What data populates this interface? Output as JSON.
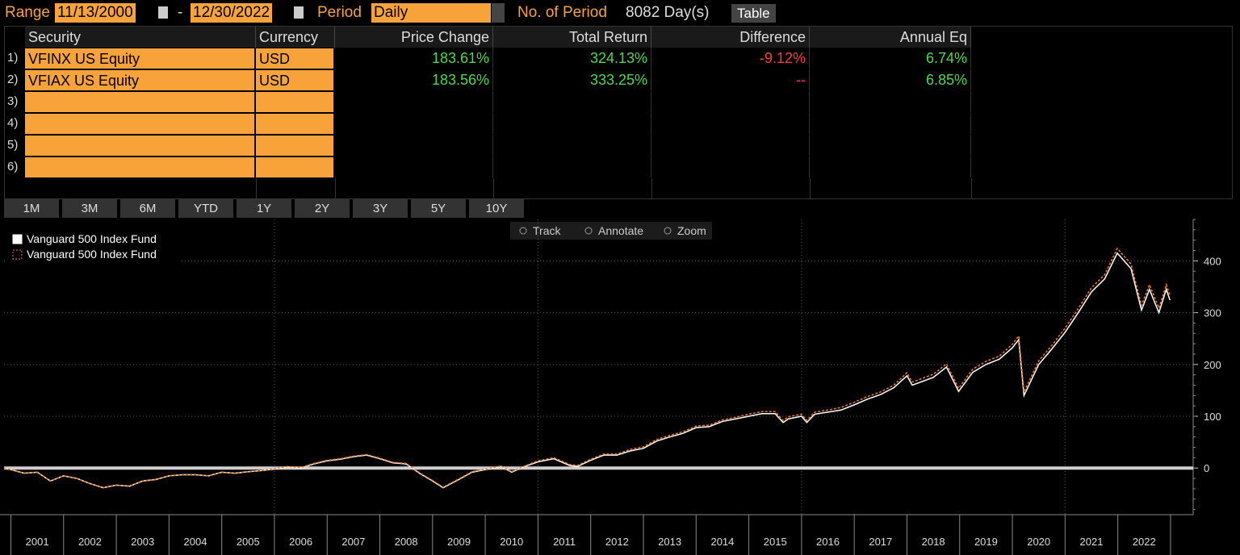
{
  "toolbar": {
    "range_label": "Range",
    "start_date": "11/13/2000",
    "dash": "-",
    "end_date": "12/30/2022",
    "period_label": "Period",
    "period": "Daily",
    "periods_label": "No. of Period",
    "periods_value": "8082 Day(s)",
    "table_button": "Table"
  },
  "table": {
    "headers": [
      "Security",
      "Currency",
      "Price Change",
      "Total Return",
      "Difference",
      "Annual Eq"
    ],
    "row_numbers": [
      "1)",
      "2)",
      "3)",
      "4)",
      "5)",
      "6)"
    ],
    "rows": [
      [
        "VFINX US Equity",
        "USD",
        "183.61%",
        "324.13%",
        "-9.12%",
        "6.74%"
      ],
      [
        "VFIAX US Equity",
        "USD",
        "183.56%",
        "333.25%",
        "--",
        "6.85%"
      ],
      [],
      [],
      [],
      []
    ]
  },
  "range_buttons": [
    "1M",
    "3M",
    "6M",
    "YTD",
    "1Y",
    "2Y",
    "3Y",
    "5Y",
    "10Y"
  ],
  "chart_tools": [
    "Track",
    "Annotate",
    "Zoom"
  ],
  "chart_data": {
    "type": "line",
    "legend": "upper left",
    "zero_line": true,
    "grid": true,
    "x": [
      2000.87,
      2001.0,
      2001.25,
      2001.5,
      2001.75,
      2002.0,
      2002.25,
      2002.5,
      2002.75,
      2003.0,
      2003.25,
      2003.5,
      2003.75,
      2004.0,
      2004.25,
      2004.5,
      2004.75,
      2005.0,
      2005.25,
      2005.5,
      2005.75,
      2006.0,
      2006.25,
      2006.5,
      2006.75,
      2007.0,
      2007.25,
      2007.5,
      2007.75,
      2008.0,
      2008.25,
      2008.5,
      2008.75,
      2009.0,
      2009.2,
      2009.5,
      2009.75,
      2010.0,
      2010.3,
      2010.5,
      2010.75,
      2011.0,
      2011.3,
      2011.6,
      2011.75,
      2012.0,
      2012.25,
      2012.5,
      2012.75,
      2013.0,
      2013.25,
      2013.5,
      2013.75,
      2014.0,
      2014.25,
      2014.5,
      2014.75,
      2015.0,
      2015.25,
      2015.5,
      2015.65,
      2015.75,
      2016.0,
      2016.1,
      2016.25,
      2016.5,
      2016.75,
      2017.0,
      2017.25,
      2017.5,
      2017.75,
      2018.0,
      2018.1,
      2018.5,
      2018.75,
      2018.98,
      2019.25,
      2019.5,
      2019.75,
      2020.0,
      2020.12,
      2020.22,
      2020.5,
      2020.75,
      2021.0,
      2021.25,
      2021.5,
      2021.75,
      2021.99,
      2022.25,
      2022.45,
      2022.6,
      2022.78,
      2022.92,
      2022.99
    ],
    "series": [
      {
        "name": "Vanguard 500 Index Fund",
        "color": "#ffffff",
        "line_style": "solid",
        "values": [
          0,
          -3,
          -10,
          -8,
          -25,
          -15,
          -20,
          -30,
          -38,
          -33,
          -35,
          -25,
          -22,
          -15,
          -13,
          -13,
          -15,
          -8,
          -10,
          -7,
          -5,
          -2,
          2,
          0,
          8,
          14,
          17,
          22,
          25,
          18,
          10,
          8,
          -10,
          -25,
          -38,
          -22,
          -8,
          -3,
          3,
          -8,
          3,
          12,
          18,
          5,
          3,
          15,
          25,
          25,
          33,
          38,
          52,
          60,
          67,
          78,
          80,
          90,
          95,
          100,
          105,
          105,
          88,
          95,
          100,
          88,
          104,
          108,
          112,
          122,
          133,
          142,
          155,
          178,
          160,
          175,
          195,
          148,
          185,
          200,
          210,
          232,
          248,
          140,
          200,
          230,
          262,
          300,
          340,
          365,
          415,
          385,
          305,
          345,
          300,
          345,
          324.13
        ]
      },
      {
        "name": "Vanguard 500 Index Fund",
        "color": "#f47a20",
        "line_style": "dashed",
        "values": [
          0,
          -3,
          -10,
          -8,
          -25,
          -15,
          -20,
          -30,
          -38,
          -33,
          -35,
          -25,
          -22,
          -15,
          -13,
          -13,
          -15,
          -8,
          -10,
          -7,
          -5,
          -1,
          3,
          1,
          9,
          15,
          18,
          23,
          26,
          19,
          11,
          9,
          -9,
          -24,
          -37,
          -21,
          -7,
          -2,
          4,
          -7,
          4,
          14,
          20,
          7,
          5,
          17,
          27,
          27,
          36,
          41,
          55,
          63,
          70,
          81,
          83,
          93,
          98,
          104,
          109,
          109,
          92,
          99,
          104,
          92,
          108,
          112,
          117,
          127,
          138,
          147,
          160,
          184,
          166,
          181,
          201,
          154,
          191,
          206,
          216,
          239,
          255,
          147,
          207,
          237,
          270,
          308,
          348,
          373,
          424,
          394,
          314,
          354,
          309,
          354,
          333.25
        ]
      }
    ],
    "xlim": [
      2000.87,
      2023.43
    ],
    "xticks": [
      {
        "value": 2001.5,
        "label": "2001"
      },
      {
        "value": 2002.5,
        "label": "2002"
      },
      {
        "value": 2003.5,
        "label": "2003"
      },
      {
        "value": 2004.5,
        "label": "2004"
      },
      {
        "value": 2005.5,
        "label": "2005"
      },
      {
        "value": 2006.5,
        "label": "2006"
      },
      {
        "value": 2007.5,
        "label": "2007"
      },
      {
        "value": 2008.5,
        "label": "2008"
      },
      {
        "value": 2009.5,
        "label": "2009"
      },
      {
        "value": 2010.5,
        "label": "2010"
      },
      {
        "value": 2011.5,
        "label": "2011"
      },
      {
        "value": 2012.5,
        "label": "2012"
      },
      {
        "value": 2013.5,
        "label": "2013"
      },
      {
        "value": 2014.5,
        "label": "2014"
      },
      {
        "value": 2015.5,
        "label": "2015"
      },
      {
        "value": 2016.5,
        "label": "2016"
      },
      {
        "value": 2017.5,
        "label": "2017"
      },
      {
        "value": 2018.5,
        "label": "2018"
      },
      {
        "value": 2019.5,
        "label": "2019"
      },
      {
        "value": 2020.5,
        "label": "2020"
      },
      {
        "value": 2021.5,
        "label": "2021"
      },
      {
        "value": 2022.5,
        "label": "2022"
      }
    ],
    "ylim": [
      -90,
      480
    ],
    "yticks": [
      0,
      100,
      200,
      300,
      400
    ]
  }
}
